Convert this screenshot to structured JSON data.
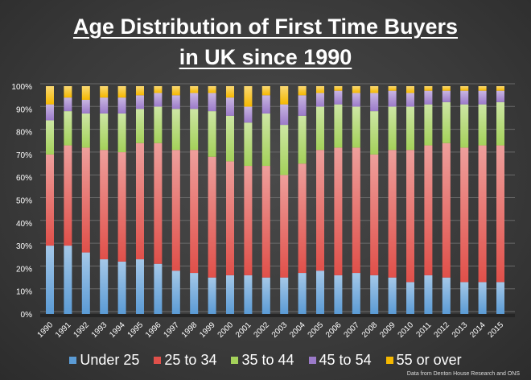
{
  "chart_data": {
    "type": "bar",
    "stacked": "percent",
    "title": [
      "Age Distribution of First Time Buyers",
      "in UK since 1990"
    ],
    "categories": [
      "1990",
      "1991",
      "1992",
      "1993",
      "1994",
      "1995",
      "1996",
      "1997",
      "1998",
      "1999",
      "2000",
      "2001",
      "2002",
      "2003",
      "2004",
      "2005",
      "2006",
      "2007",
      "2008",
      "2009",
      "2010",
      "2011",
      "2012",
      "2013",
      "2014",
      "2015"
    ],
    "yticks": [
      "0%",
      "10%",
      "20%",
      "30%",
      "40%",
      "50%",
      "60%",
      "70%",
      "80%",
      "90%",
      "100%"
    ],
    "ylim": [
      0,
      100
    ],
    "grid": true,
    "legend_position": "bottom",
    "series": [
      {
        "name": "Under 25",
        "color": "#5b9bd5",
        "values": [
          30,
          30,
          27,
          24,
          23,
          24,
          22,
          19,
          18,
          16,
          17,
          17,
          16,
          16,
          18,
          19,
          17,
          18,
          17,
          16,
          14,
          17,
          16,
          14,
          14,
          14
        ]
      },
      {
        "name": "25 to 34",
        "color": "#e0504a",
        "values": [
          40,
          44,
          46,
          48,
          48,
          51,
          53,
          53,
          54,
          53,
          50,
          48,
          49,
          45,
          48,
          53,
          56,
          55,
          53,
          56,
          58,
          57,
          59,
          59,
          60,
          60
        ]
      },
      {
        "name": "35 to 44",
        "color": "#a4d15a",
        "values": [
          15,
          15,
          15,
          16,
          17,
          15,
          16,
          18,
          18,
          20,
          20,
          19,
          23,
          22,
          21,
          19,
          19,
          18,
          19,
          19,
          19,
          18,
          18,
          19,
          18,
          19
        ]
      },
      {
        "name": "45 to 54",
        "color": "#9b7ac9",
        "values": [
          7,
          6,
          6,
          7,
          7,
          6,
          6,
          6,
          7,
          8,
          8,
          7,
          8,
          9,
          9,
          6,
          6,
          6,
          8,
          7,
          6,
          6,
          5,
          6,
          6,
          5
        ]
      },
      {
        "name": "55 or over",
        "color": "#f5b800",
        "values": [
          8,
          5,
          6,
          5,
          5,
          4,
          3,
          4,
          3,
          3,
          5,
          9,
          4,
          8,
          4,
          3,
          2,
          3,
          3,
          2,
          3,
          2,
          2,
          2,
          2,
          2
        ]
      }
    ],
    "source_note": "Data from Denton House Research and ONS"
  }
}
